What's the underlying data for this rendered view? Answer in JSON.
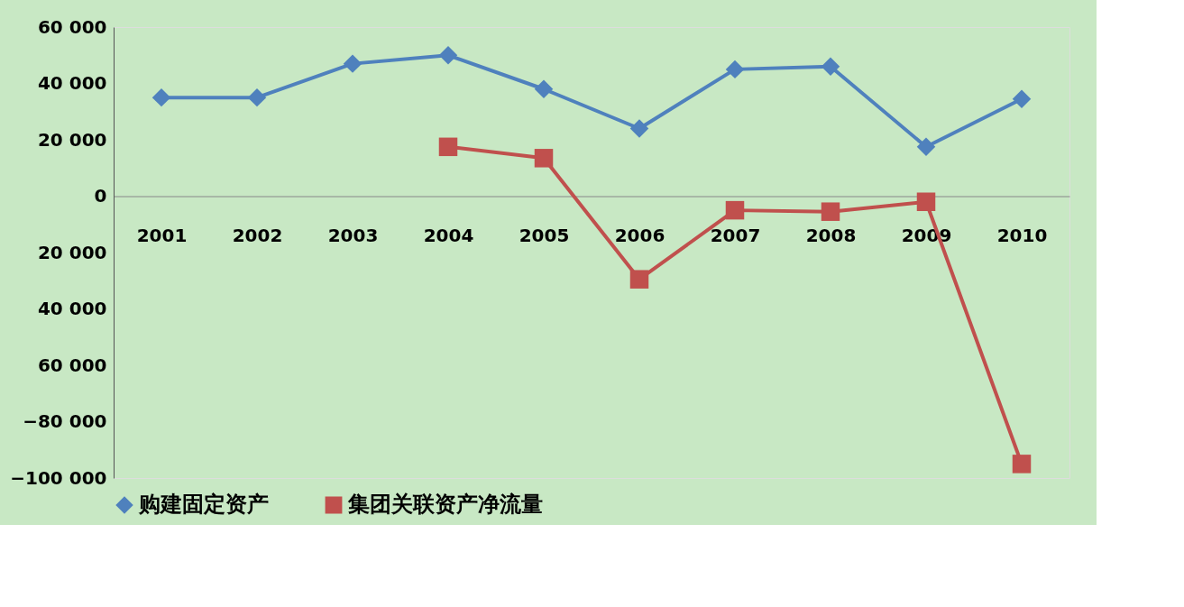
{
  "chart_data": {
    "type": "line",
    "categories": [
      "2001",
      "2002",
      "2003",
      "2004",
      "2005",
      "2006",
      "2007",
      "2008",
      "2009",
      "2010"
    ],
    "series": [
      {
        "name": "购建固定资产",
        "color": "#4f81bd",
        "marker": "diamond",
        "values": [
          35000,
          35000,
          47000,
          50000,
          38000,
          24000,
          45000,
          46000,
          17500,
          34500
        ]
      },
      {
        "name": "集团关联资产净流量",
        "color": "#c0504d",
        "marker": "square",
        "values": [
          null,
          null,
          null,
          17500,
          13500,
          -29500,
          -5000,
          -5500,
          -2000,
          -95000
        ]
      }
    ],
    "ylim": [
      -100000,
      60000
    ],
    "yticks": [
      {
        "value": 60000,
        "label": "60 000"
      },
      {
        "value": 40000,
        "label": "40 000"
      },
      {
        "value": 20000,
        "label": "20 000"
      },
      {
        "value": 0,
        "label": "0"
      },
      {
        "value": -20000,
        "label": "20 000"
      },
      {
        "value": -40000,
        "label": "40 000"
      },
      {
        "value": -60000,
        "label": "60 000"
      },
      {
        "value": -80000,
        "label": "−80 000"
      },
      {
        "value": -100000,
        "label": "−100 000"
      }
    ],
    "grid": false,
    "legend": "bottom"
  }
}
